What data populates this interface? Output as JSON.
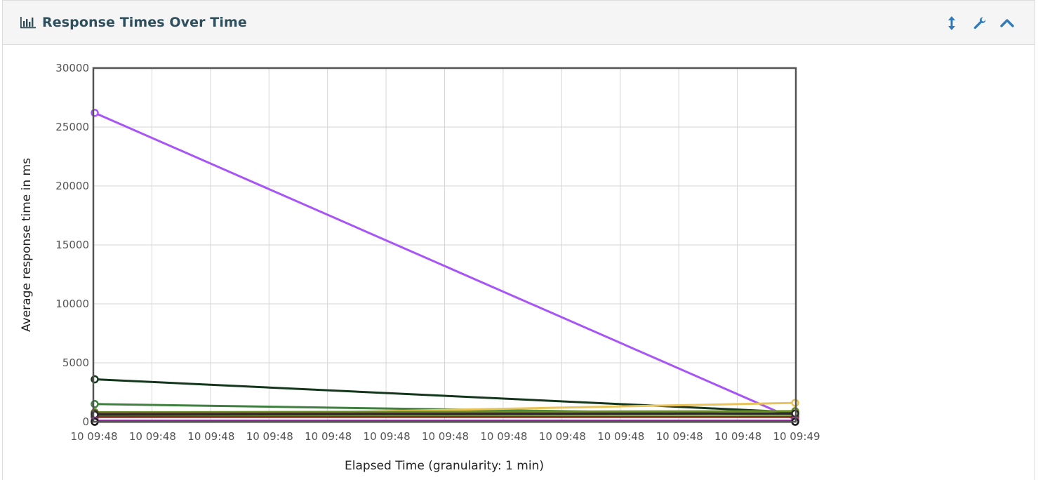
{
  "panel": {
    "title": "Response Times Over Time",
    "title_icon": "bar-chart-icon",
    "tools": [
      {
        "name": "resize-vertical-icon"
      },
      {
        "name": "wrench-icon"
      },
      {
        "name": "chevron-up-icon"
      }
    ],
    "accent_color": "#337ab7"
  },
  "chart_data": {
    "type": "line",
    "xlabel": "Elapsed Time (granularity: 1 min)",
    "ylabel": "Average response time in ms",
    "ylim": [
      0,
      30000
    ],
    "yticks": [
      0,
      5000,
      10000,
      15000,
      20000,
      25000,
      30000
    ],
    "xtick_labels": [
      "10 09:48",
      "10 09:48",
      "10 09:48",
      "10 09:48",
      "10 09:48",
      "10 09:48",
      "10 09:48",
      "10 09:48",
      "10 09:48",
      "10 09:48",
      "10 09:48",
      "10 09:48",
      "10 09:49"
    ],
    "x": [
      "10 09:48",
      "10 09:49"
    ],
    "grid": true,
    "series": [
      {
        "color": "#a855f7",
        "values": [
          26200,
          200
        ]
      },
      {
        "color": "#14361c",
        "values": [
          3600,
          800
        ]
      },
      {
        "color": "#3f7f3f",
        "values": [
          1500,
          600
        ]
      },
      {
        "color": "#e8c35a",
        "values": [
          400,
          1600
        ]
      },
      {
        "color": "#6b8e23",
        "values": [
          800,
          900
        ]
      },
      {
        "color": "#7cc142",
        "values": [
          500,
          500
        ]
      },
      {
        "color": "#5c4033",
        "values": [
          700,
          700
        ]
      },
      {
        "color": "#8b2e2e",
        "values": [
          400,
          400
        ]
      },
      {
        "color": "#2b2b2b",
        "values": [
          600,
          700
        ]
      },
      {
        "color": "#9b3fa6",
        "values": [
          100,
          100
        ]
      },
      {
        "color": "#1a1a1a",
        "values": [
          0,
          0
        ]
      }
    ]
  }
}
